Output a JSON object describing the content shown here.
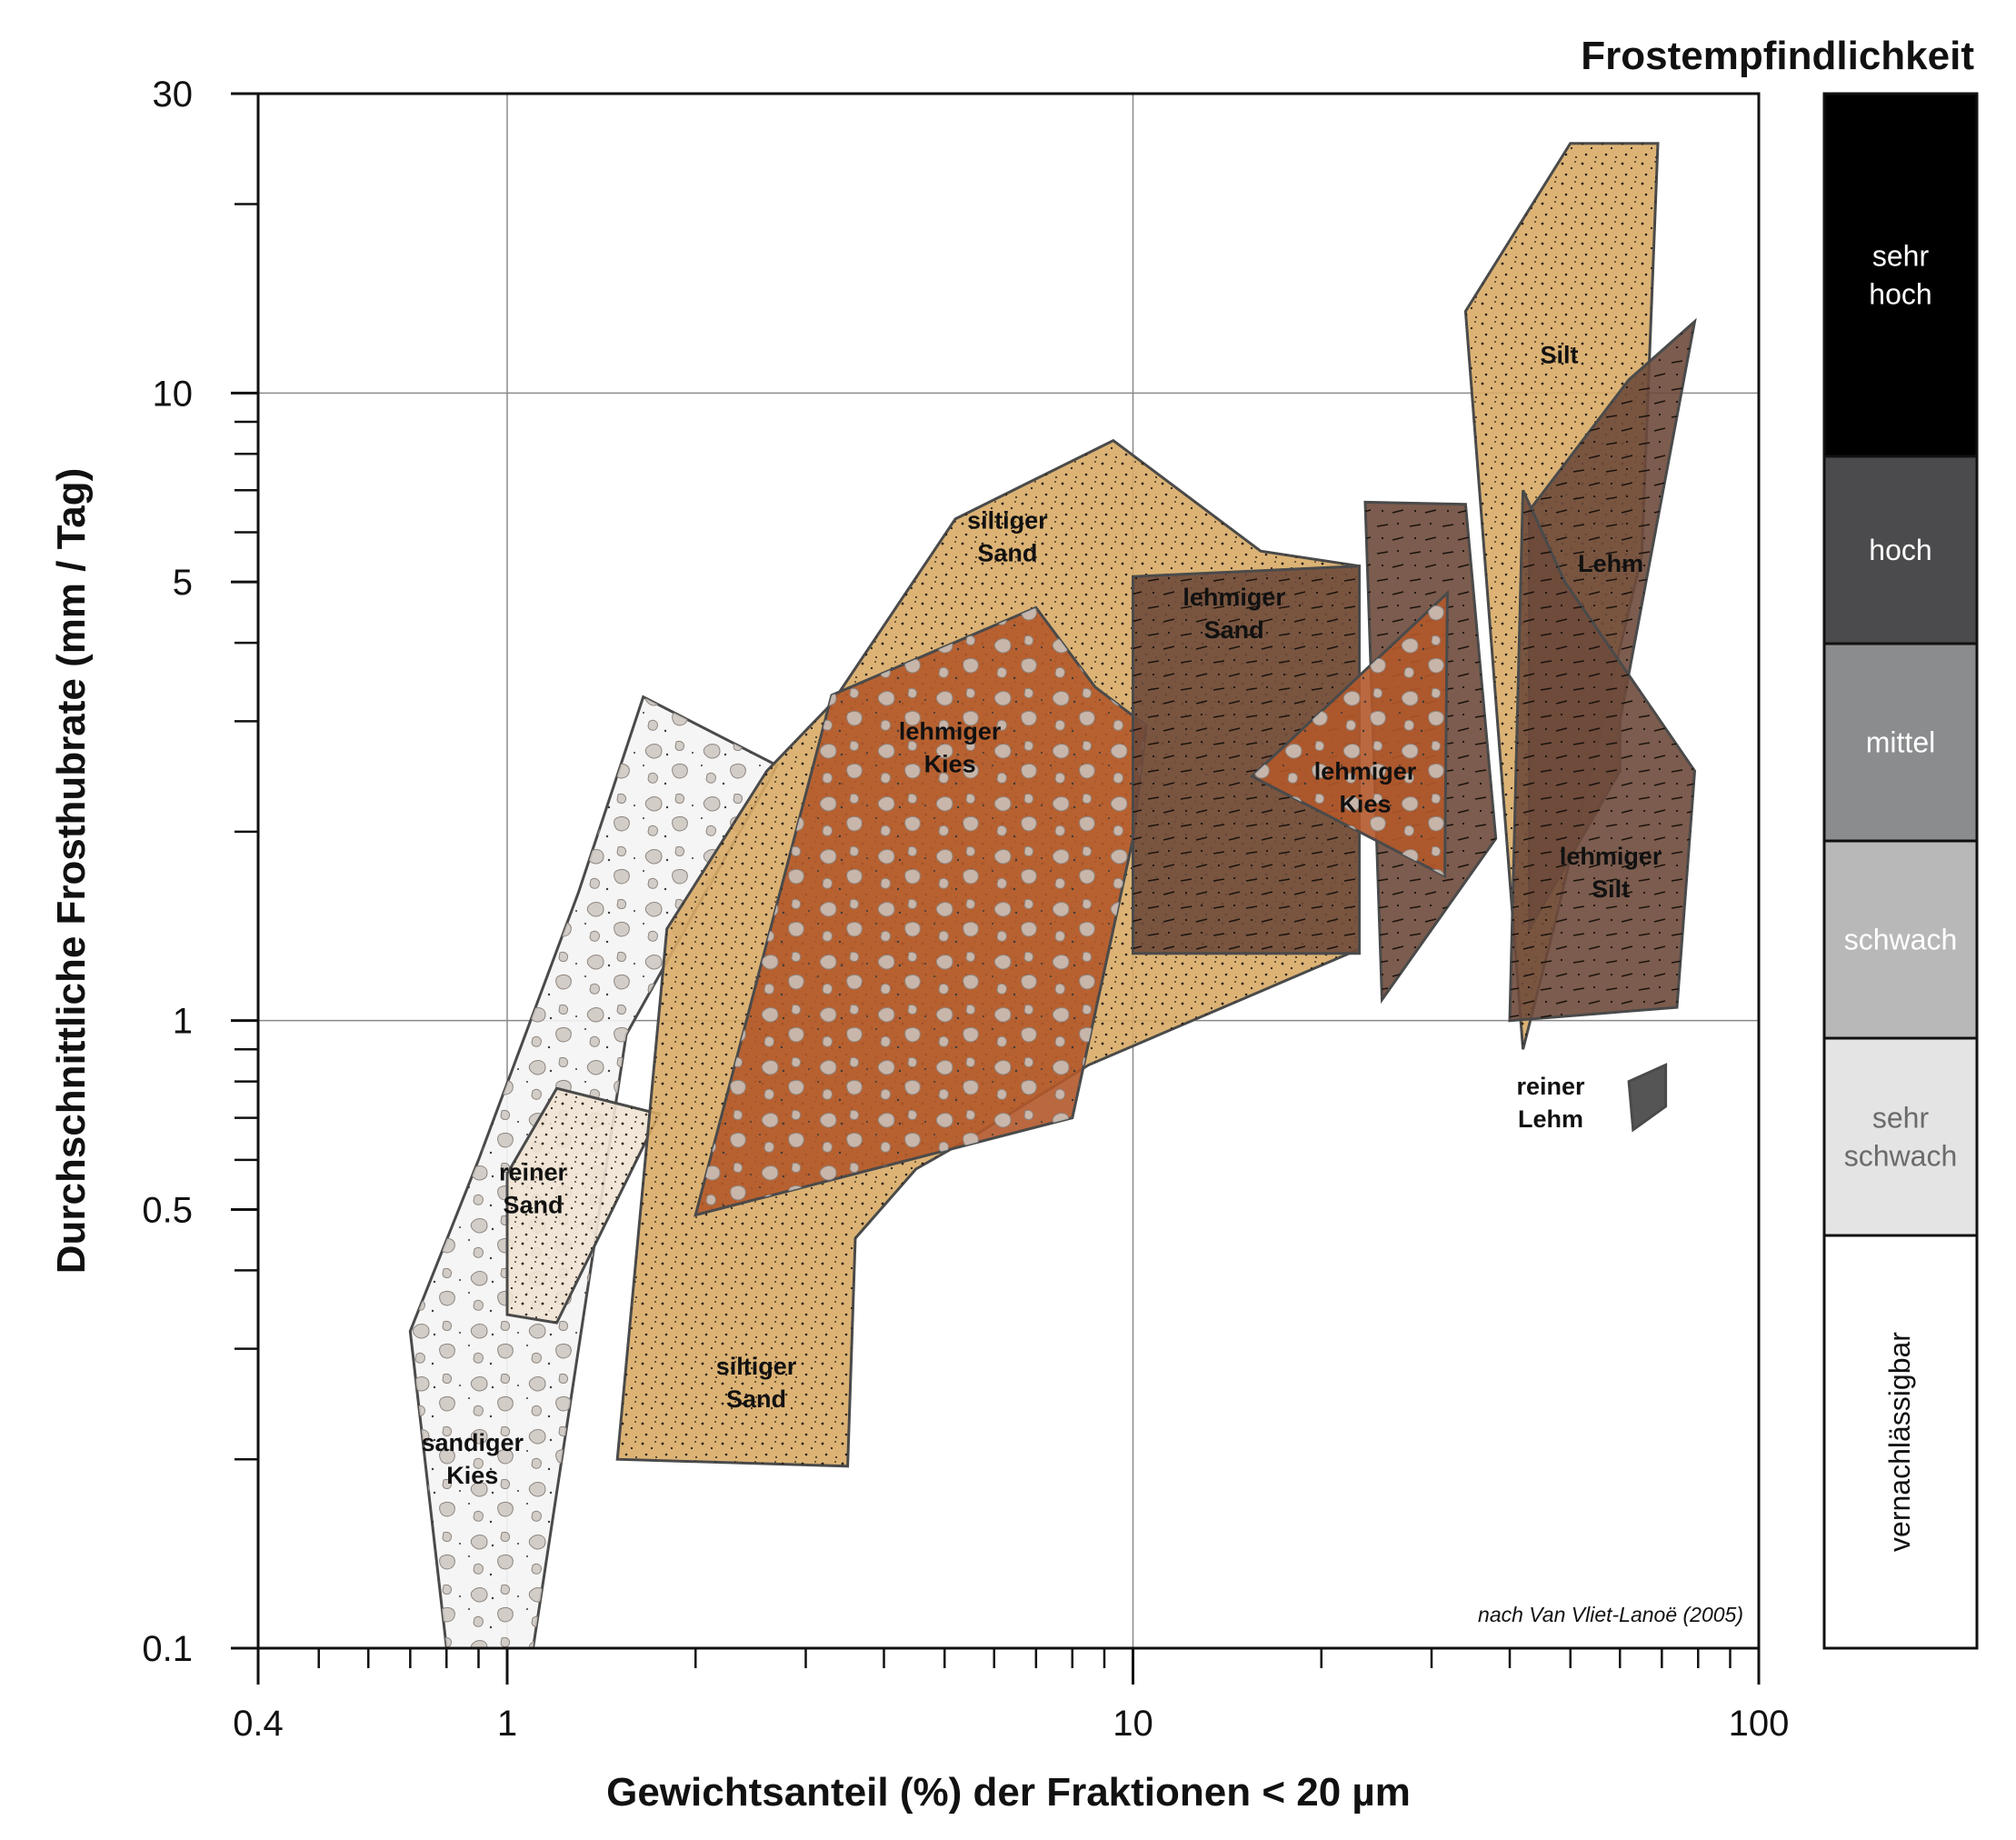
{
  "chart_data": {
    "type": "area",
    "xlabel": "Gewichtsanteil (%) der Fraktionen < 20 µm",
    "ylabel": "Durchschnittliche Frosthubrate (mm / Tag)",
    "xscale": "log",
    "yscale": "log",
    "xlim": [
      0.4,
      100
    ],
    "ylim": [
      0.1,
      30
    ],
    "x_tick_labels": [
      "0.4",
      "1",
      "10",
      "100"
    ],
    "x_tick_values": [
      0.4,
      1,
      10,
      100
    ],
    "y_tick_labels": [
      "0.1",
      "0.5",
      "1",
      "5",
      "10",
      "30"
    ],
    "y_tick_values": [
      0.1,
      0.5,
      1,
      5,
      10,
      30
    ],
    "grid": true,
    "note": "nach Van Vliet-Lanoë (2005)",
    "regions": [
      {
        "label": "sandiger Kies",
        "fill": "#f4f4f4",
        "pattern": "gravel",
        "points": [
          [
            1.65,
            3.28
          ],
          [
            2.7,
            2.55
          ],
          [
            2.0,
            1.5
          ],
          [
            1.55,
            0.95
          ],
          [
            1.1,
            0.1
          ],
          [
            0.8,
            0.1
          ],
          [
            0.7,
            0.32
          ],
          [
            0.9,
            0.6
          ],
          [
            1.3,
            1.6
          ]
        ]
      },
      {
        "label": "reiner Sand",
        "fill": "#f0e3d3",
        "pattern": "dots",
        "points": [
          [
            1.2,
            0.78
          ],
          [
            1.75,
            0.71
          ],
          [
            1.2,
            0.33
          ],
          [
            1.0,
            0.34
          ],
          [
            1.0,
            0.57
          ]
        ]
      },
      {
        "label": "siltiger Sand",
        "fill": "#d8ab66",
        "pattern": "dots",
        "points": [
          [
            5.2,
            6.3
          ],
          [
            9.3,
            8.4
          ],
          [
            16.0,
            5.6
          ],
          [
            23.0,
            5.3
          ],
          [
            23.0,
            1.3
          ],
          [
            8.5,
            0.85
          ],
          [
            5.5,
            0.65
          ],
          [
            4.5,
            0.58
          ],
          [
            3.6,
            0.45
          ],
          [
            3.5,
            0.195
          ],
          [
            1.5,
            0.2
          ],
          [
            1.8,
            1.4
          ],
          [
            2.6,
            2.5
          ],
          [
            3.3,
            3.2
          ]
        ]
      },
      {
        "label": "lehmiger Kies",
        "fill": "#b3582a",
        "pattern": "gravel",
        "points": [
          [
            3.3,
            3.3
          ],
          [
            7.0,
            4.55
          ],
          [
            8.7,
            3.4
          ],
          [
            10.5,
            2.95
          ],
          [
            10.0,
            1.95
          ],
          [
            8.0,
            0.7
          ],
          [
            2.0,
            0.49
          ]
        ]
      },
      {
        "label": "lehmiger Sand",
        "fill": "#6e4a3b",
        "pattern": "dashes",
        "points": [
          [
            10.0,
            5.1
          ],
          [
            23.0,
            5.3
          ],
          [
            23.0,
            1.28
          ],
          [
            10.0,
            1.28
          ]
        ]
      },
      {
        "label": "Silt",
        "fill": "#d8ab66",
        "pattern": "dots",
        "points": [
          [
            50,
            25
          ],
          [
            69,
            25
          ],
          [
            65,
            5.5
          ],
          [
            47,
            1.4
          ],
          [
            42,
            0.9
          ],
          [
            34,
            13.5
          ]
        ]
      },
      {
        "label": "Lehm",
        "fill": "#6e4a3b",
        "pattern": "dashes",
        "points": [
          [
            43,
            6.5
          ],
          [
            62,
            10.5
          ],
          [
            79,
            13.0
          ],
          [
            60,
            3.0
          ],
          [
            60,
            2.5
          ],
          [
            43,
            1.4
          ]
        ]
      },
      {
        "label": "lehmiger Silt",
        "fill": "#6e4a3b",
        "pattern": "dashes",
        "points": [
          [
            23.5,
            6.7
          ],
          [
            34,
            6.65
          ],
          [
            38,
            1.95
          ],
          [
            25,
            1.08
          ]
        ]
      },
      {
        "label": "lehmiger Silt",
        "fill": "#6e4a3b",
        "pattern": "dashes",
        "points": [
          [
            42,
            7.0
          ],
          [
            49,
            5.0
          ],
          [
            79,
            2.5
          ],
          [
            74,
            1.05
          ],
          [
            40,
            1.0
          ]
        ]
      },
      {
        "label": "lehmiger Kies",
        "fill": "#b3582a",
        "pattern": "gravel",
        "points": [
          [
            15.5,
            2.45
          ],
          [
            31.8,
            4.8
          ],
          [
            31.5,
            1.7
          ]
        ]
      },
      {
        "label": "reiner Lehm",
        "fill": "#555555",
        "pattern": "none",
        "points": [
          [
            62,
            0.8
          ],
          [
            71,
            0.85
          ],
          [
            71,
            0.73
          ],
          [
            63,
            0.67
          ]
        ]
      }
    ],
    "region_labels": [
      {
        "text": [
          "siltiger",
          "Sand"
        ],
        "x": 6.3,
        "y": 5.9
      },
      {
        "text": [
          "lehmiger",
          "Kies"
        ],
        "x": 5.1,
        "y": 2.72
      },
      {
        "text": [
          "lehmiger",
          "Sand"
        ],
        "x": 14.5,
        "y": 4.45
      },
      {
        "text": [
          "lehmiger",
          "Kies"
        ],
        "x": 23.5,
        "y": 2.35
      },
      {
        "text": [
          "Silt"
        ],
        "x": 48,
        "y": 11.5
      },
      {
        "text": [
          "Lehm"
        ],
        "x": 58,
        "y": 5.35
      },
      {
        "text": [
          "lehmiger",
          "Silt"
        ],
        "x": 58,
        "y": 1.72
      },
      {
        "text": [
          "reiner",
          "Sand"
        ],
        "x": 1.1,
        "y": 0.54
      },
      {
        "text": [
          "siltiger",
          "Sand"
        ],
        "x": 2.5,
        "y": 0.265
      },
      {
        "text": [
          "sandiger",
          "Kies"
        ],
        "x": 0.88,
        "y": 0.2
      },
      {
        "text": [
          "reiner",
          "Lehm"
        ],
        "x": 46.5,
        "y": 0.74
      }
    ]
  },
  "legend": {
    "title": "Frostempfindlichkeit",
    "classes": [
      {
        "text": [
          "sehr",
          "hoch"
        ],
        "color": "#000000",
        "text_color": "#ffffff"
      },
      {
        "text": [
          "hoch"
        ],
        "color": "#4b4b4d",
        "text_color": "#ffffff"
      },
      {
        "text": [
          "mittel"
        ],
        "color": "#8b8c8e",
        "text_color": "#ffffff"
      },
      {
        "text": [
          "schwach"
        ],
        "color": "#b8b8b8",
        "text_color": "#ffffff"
      },
      {
        "text": [
          "sehr",
          "schwach"
        ],
        "color": "#e4e4e5",
        "text_color": "#6b6b6b"
      },
      {
        "text": [
          "vernachlässigbar"
        ],
        "color": "#ffffff",
        "text_color": "#111111",
        "rotated": true
      }
    ]
  }
}
